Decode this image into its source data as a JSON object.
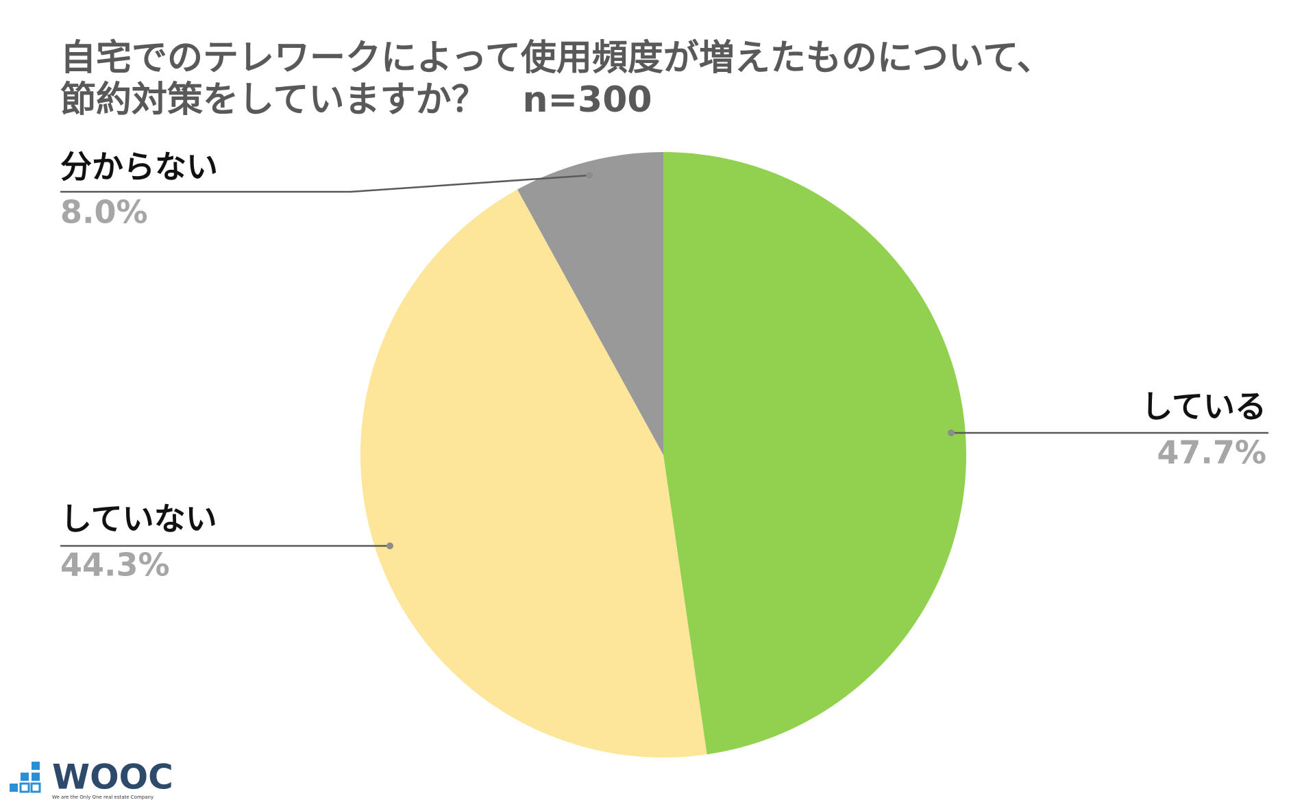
{
  "chart_data": {
    "type": "pie",
    "title": [
      "自宅でのテレワークによって使用頻度が増えたものについて、",
      "節約対策をしていますか？　n=300"
    ],
    "categories": [
      "している",
      "していない",
      "分からない"
    ],
    "values": [
      47.7,
      44.3,
      8.0
    ],
    "value_labels": [
      "47.7%",
      "44.3%",
      "8.0%"
    ],
    "colors": [
      "#92d050",
      "#fde599",
      "#999999"
    ]
  },
  "logo": {
    "name": "WOOC",
    "tagline": "We are the Only One real estate Company"
  }
}
